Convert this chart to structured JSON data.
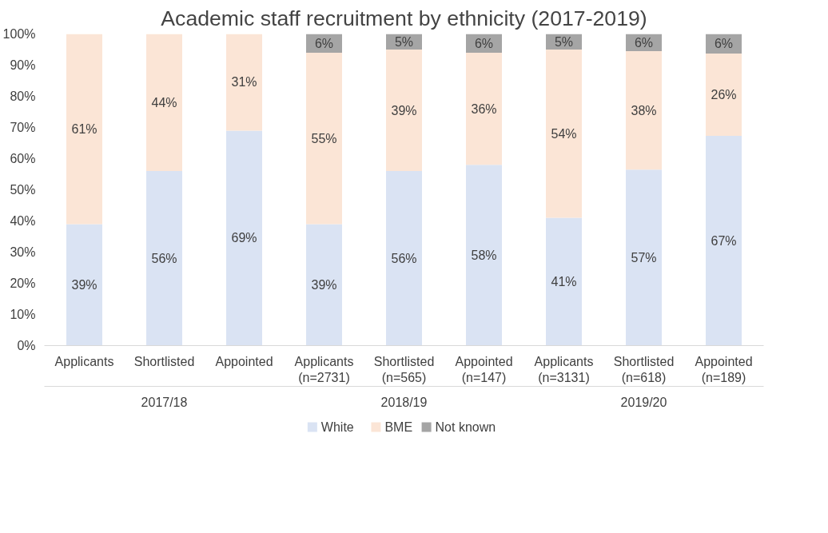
{
  "chart_data": {
    "type": "bar",
    "stacked": true,
    "title": "Academic staff recruitment by ethnicity (2017-2019)",
    "categories": [
      "Applicants",
      "Shortlisted",
      "Appointed",
      "Applicants\n(n=2731)",
      "Shortlisted\n(n=565)",
      "Appointed\n(n=147)",
      "Applicants\n(n=3131)",
      "Shortlisted\n(n=618)",
      "Appointed\n(n=189)"
    ],
    "annotations": [
      "2017/18",
      "2018/19",
      "2019/20"
    ],
    "series": [
      {
        "name": "White",
        "color": "#dae3f3",
        "values": [
          39,
          56,
          69,
          39,
          56,
          58,
          41,
          56.5,
          67.3
        ],
        "value_labels": [
          "39%",
          "56%",
          "69%",
          "39%",
          "56%",
          "58%",
          "41%",
          "57%",
          "67%"
        ]
      },
      {
        "name": "BME",
        "color": "#fbe5d6",
        "values": [
          61,
          44,
          31,
          55,
          39,
          36,
          54,
          38,
          26.4
        ],
        "value_labels": [
          "61%",
          "44%",
          "31%",
          "55%",
          "39%",
          "36%",
          "54%",
          "38%",
          "26%"
        ]
      },
      {
        "name": "Not known",
        "color": "#a5a5a5",
        "values": [
          null,
          null,
          null,
          6,
          5,
          6,
          5,
          5.5,
          6.3
        ],
        "value_labels": [
          null,
          null,
          null,
          "6%",
          "5%",
          "6%",
          "5%",
          "6%",
          "6%"
        ]
      }
    ],
    "ylim": [
      0,
      100
    ],
    "yticks": [
      {
        "value": 0,
        "label": "0%"
      },
      {
        "value": 10,
        "label": "10%"
      },
      {
        "value": 20,
        "label": "20%"
      },
      {
        "value": 30,
        "label": "30%"
      },
      {
        "value": 40,
        "label": "40%"
      },
      {
        "value": 50,
        "label": "50%"
      },
      {
        "value": 60,
        "label": "60%"
      },
      {
        "value": 70,
        "label": "70%"
      },
      {
        "value": 80,
        "label": "80%"
      },
      {
        "value": 90,
        "label": "90%"
      },
      {
        "value": 100,
        "label": "100%"
      }
    ],
    "legend": "bottom",
    "grid": false
  }
}
